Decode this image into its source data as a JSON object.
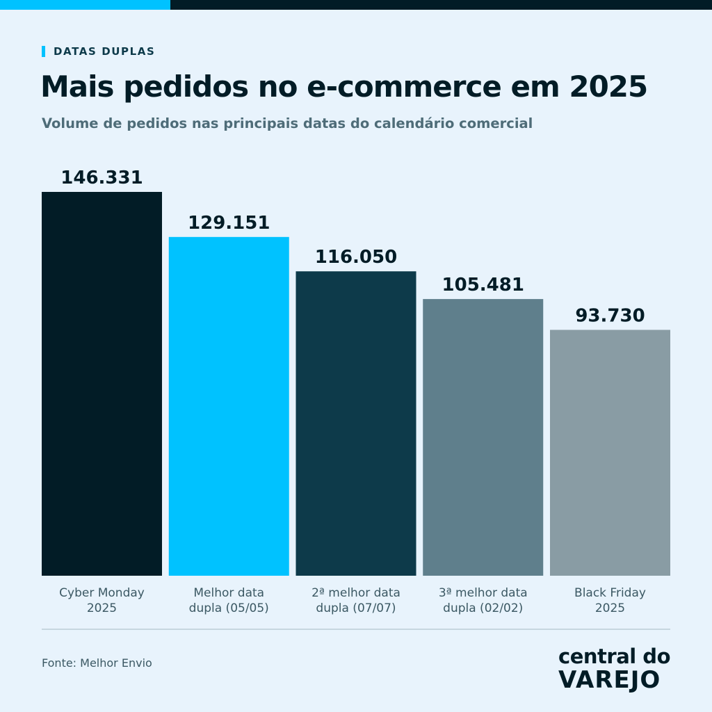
{
  "kicker": "DATAS DUPLAS",
  "title": "Mais pedidos no e-commerce em 2025",
  "subtitle": "Volume de pedidos nas principais datas do calendário comercial",
  "source": "Fonte: Melhor Envio",
  "logo": {
    "line1": "central do",
    "line2": "VAREJO"
  },
  "colors": {
    "background": "#e8f3fc",
    "accent": "#00c2ff",
    "dark": "#021c26"
  },
  "chart_data": {
    "type": "bar",
    "categories": [
      [
        "Cyber Monday",
        "2025"
      ],
      [
        "Melhor data",
        "dupla (05/05)"
      ],
      [
        "2ª melhor data",
        "dupla (07/07)"
      ],
      [
        "3ª melhor data",
        "dupla (02/02)"
      ],
      [
        "Black Friday",
        "2025"
      ]
    ],
    "values": [
      146331,
      129151,
      116050,
      105481,
      93730
    ],
    "value_labels": [
      "146.331",
      "129.151",
      "116.050",
      "105.481",
      "93.730"
    ],
    "bar_colors": [
      "#021c26",
      "#00c2ff",
      "#0d3a4a",
      "#5f7f8c",
      "#899ca4"
    ],
    "title": "Mais pedidos no e-commerce em 2025",
    "xlabel": "",
    "ylabel": "",
    "grid": false,
    "legend": "none"
  }
}
